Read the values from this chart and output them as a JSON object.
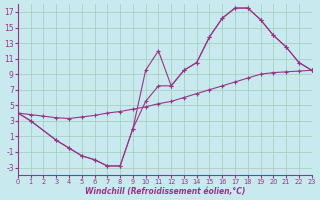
{
  "bg_color": "#c8eaee",
  "grid_color": "#a0ccbb",
  "line_color": "#993388",
  "xlim": [
    0,
    23
  ],
  "ylim": [
    -4,
    18
  ],
  "xticks": [
    0,
    1,
    2,
    3,
    4,
    5,
    6,
    7,
    8,
    9,
    10,
    11,
    12,
    13,
    14,
    15,
    16,
    17,
    18,
    19,
    20,
    21,
    22,
    23
  ],
  "yticks": [
    -3,
    -1,
    1,
    3,
    5,
    7,
    9,
    11,
    13,
    15,
    17
  ],
  "xlabel": "Windchill (Refroidissement éolien,°C)",
  "line1_x": [
    0,
    1,
    3,
    4,
    5,
    6,
    7,
    8,
    9,
    10,
    11,
    12,
    13,
    14,
    15,
    16,
    17,
    18,
    19,
    20,
    21,
    22,
    23
  ],
  "line1_y": [
    4,
    3,
    0.5,
    -0.5,
    -1.5,
    -2.0,
    -2.8,
    -2.8,
    2.0,
    9.5,
    12.0,
    7.5,
    9.5,
    10.5,
    13.8,
    16.2,
    17.5,
    17.5,
    16.0,
    14.0,
    12.5,
    10.5,
    9.5
  ],
  "line2_x": [
    0,
    1,
    3,
    4,
    5,
    6,
    7,
    8,
    9,
    10,
    11,
    12,
    13,
    14,
    15,
    16,
    17,
    18,
    19,
    20,
    21,
    22,
    23
  ],
  "line2_y": [
    4,
    3,
    0.5,
    -0.5,
    -1.5,
    -2.0,
    -2.8,
    -2.8,
    2.0,
    5.5,
    7.5,
    7.5,
    9.5,
    10.5,
    13.8,
    16.2,
    17.5,
    17.5,
    16.0,
    14.0,
    12.5,
    10.5,
    9.5
  ],
  "line3_x": [
    0,
    1,
    2,
    3,
    4,
    5,
    6,
    7,
    8,
    9,
    10,
    11,
    12,
    13,
    14,
    15,
    16,
    17,
    18,
    19,
    20,
    21,
    22,
    23
  ],
  "line3_y": [
    4.0,
    3.8,
    3.6,
    3.4,
    3.3,
    3.5,
    3.7,
    4.0,
    4.2,
    4.5,
    4.8,
    5.2,
    5.5,
    6.0,
    6.5,
    7.0,
    7.5,
    8.0,
    8.5,
    9.0,
    9.2,
    9.3,
    9.4,
    9.5
  ],
  "marker_size": 3.5
}
